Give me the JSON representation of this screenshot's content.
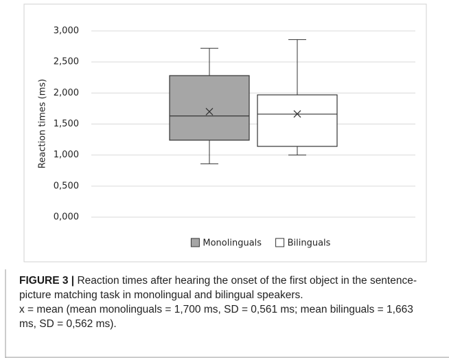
{
  "chart_data": {
    "type": "box",
    "ylabel": "Reaction times (ms)",
    "ylim": [
      0,
      3
    ],
    "yticks": [
      {
        "value": 0,
        "label": "0,000"
      },
      {
        "value": 0.5,
        "label": "0,500"
      },
      {
        "value": 1,
        "label": "1,000"
      },
      {
        "value": 1.5,
        "label": "1,500"
      },
      {
        "value": 2,
        "label": "2,000"
      },
      {
        "value": 2.5,
        "label": "2,500"
      },
      {
        "value": 3,
        "label": "3,000"
      }
    ],
    "grid": true,
    "legend": "bottom",
    "series": [
      {
        "name": "Monolinguals",
        "color": "#a6a6a6",
        "whisker_low": 0.86,
        "q1": 1.24,
        "median": 1.63,
        "q3": 2.28,
        "whisker_high": 2.72,
        "mean": 1.7
      },
      {
        "name": "Bilinguals",
        "color": "#ffffff",
        "whisker_low": 1.0,
        "q1": 1.14,
        "median": 1.66,
        "q3": 1.97,
        "whisker_high": 2.86,
        "mean": 1.663
      }
    ]
  },
  "caption": {
    "label": "FIGURE 3 |",
    "text": "Reaction times after hearing the onset of the first object in the sentence-picture matching task in monolingual and bilingual speakers.",
    "note": "x = mean (mean monolinguals = 1,700 ms, SD = 0,561 ms; mean bilinguals = 1,663 ms, SD = 0,562 ms)."
  }
}
